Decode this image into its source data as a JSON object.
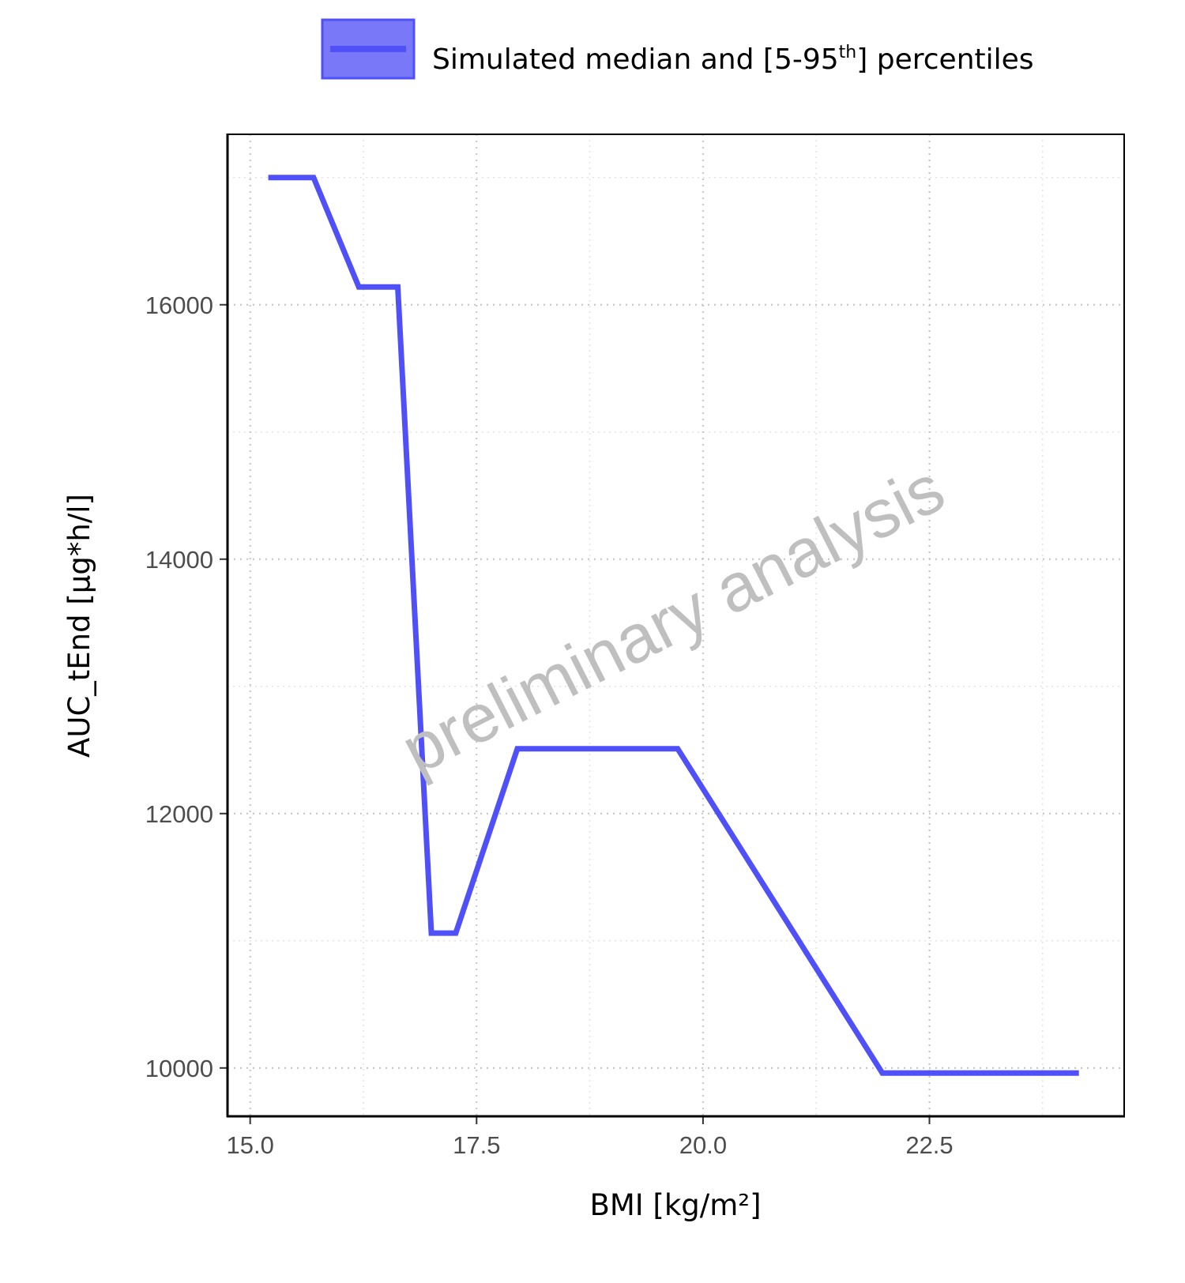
{
  "chart_data": {
    "type": "line",
    "xlabel": "BMI [kg/m²]",
    "ylabel": "AUC_tEnd [µg*h/l]",
    "xlim": [
      14.75,
      24.65
    ],
    "ylim": [
      9620,
      17340
    ],
    "x_ticks": [
      15.0,
      17.5,
      20.0,
      22.5
    ],
    "x_tick_labels": [
      "15.0",
      "17.5",
      "20.0",
      "22.5"
    ],
    "y_ticks": [
      10000,
      12000,
      14000,
      16000
    ],
    "y_tick_labels": [
      "10000",
      "12000",
      "14000",
      "16000"
    ],
    "x_minor_grid": [
      16.25,
      18.75,
      21.25,
      23.75
    ],
    "y_minor_grid": [
      11000,
      13000,
      15000,
      17000
    ],
    "grid": true,
    "legend": {
      "placement": "top",
      "label_main": "Simulated median and [5-95",
      "label_sup": "th",
      "label_end": "] percentiles"
    },
    "watermark": "preliminary analysis",
    "series": [
      {
        "color": "#5050f8",
        "x": [
          15.2,
          15.7,
          16.2,
          16.63,
          17.0,
          17.27,
          17.95,
          19.72,
          21.98,
          24.15
        ],
        "y": [
          17000,
          17000,
          16140,
          16140,
          11060,
          11060,
          12510,
          12510,
          9960,
          9960
        ]
      }
    ]
  }
}
